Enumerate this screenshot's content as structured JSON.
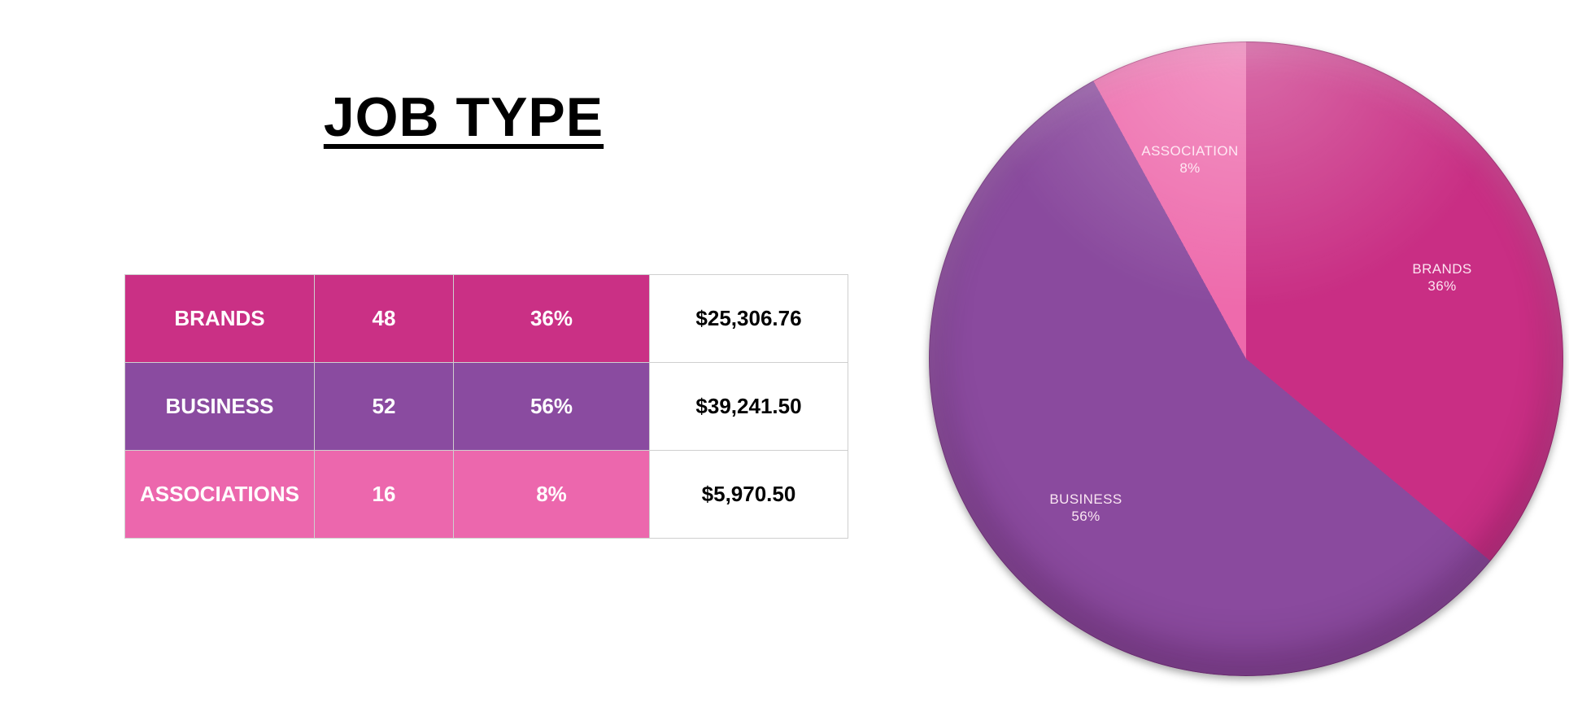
{
  "title": {
    "text": "JOB TYPE"
  },
  "table": {
    "rows": [
      {
        "label": "BRANDS",
        "count": "48",
        "percent": "36%",
        "amount": "$25,306.76",
        "color": "#ca3085"
      },
      {
        "label": "BUSINESS",
        "count": "52",
        "percent": "56%",
        "amount": "$39,241.50",
        "color": "#8a4ba0"
      },
      {
        "label": "ASSOCIATIONS",
        "count": "16",
        "percent": "8%",
        "amount": "$5,970.50",
        "color": "#ec67ad"
      }
    ]
  },
  "pie_labels": {
    "brands": {
      "name": "BRANDS",
      "pct": "36%"
    },
    "business": {
      "name": "BUSINESS",
      "pct": "56%"
    },
    "association": {
      "name": "ASSOCIATION",
      "pct": "8%"
    }
  },
  "chart_data": {
    "type": "pie",
    "title": "JOB TYPE",
    "categories": [
      "BRANDS",
      "BUSINESS",
      "ASSOCIATION"
    ],
    "values": [
      36,
      56,
      8
    ],
    "unit": "percent",
    "counts": [
      48,
      52,
      16
    ],
    "amounts": [
      25306.76,
      39241.5,
      5970.5
    ],
    "amount_labels": [
      "$25,306.76",
      "$39,241.50",
      "$5,970.50"
    ],
    "colors": [
      "#c92e84",
      "#8a4a9e",
      "#ee6aac"
    ],
    "start_angle_deg": 0,
    "direction": "clockwise",
    "legend_position": "none",
    "labels_on_slices": true,
    "grid": false
  }
}
